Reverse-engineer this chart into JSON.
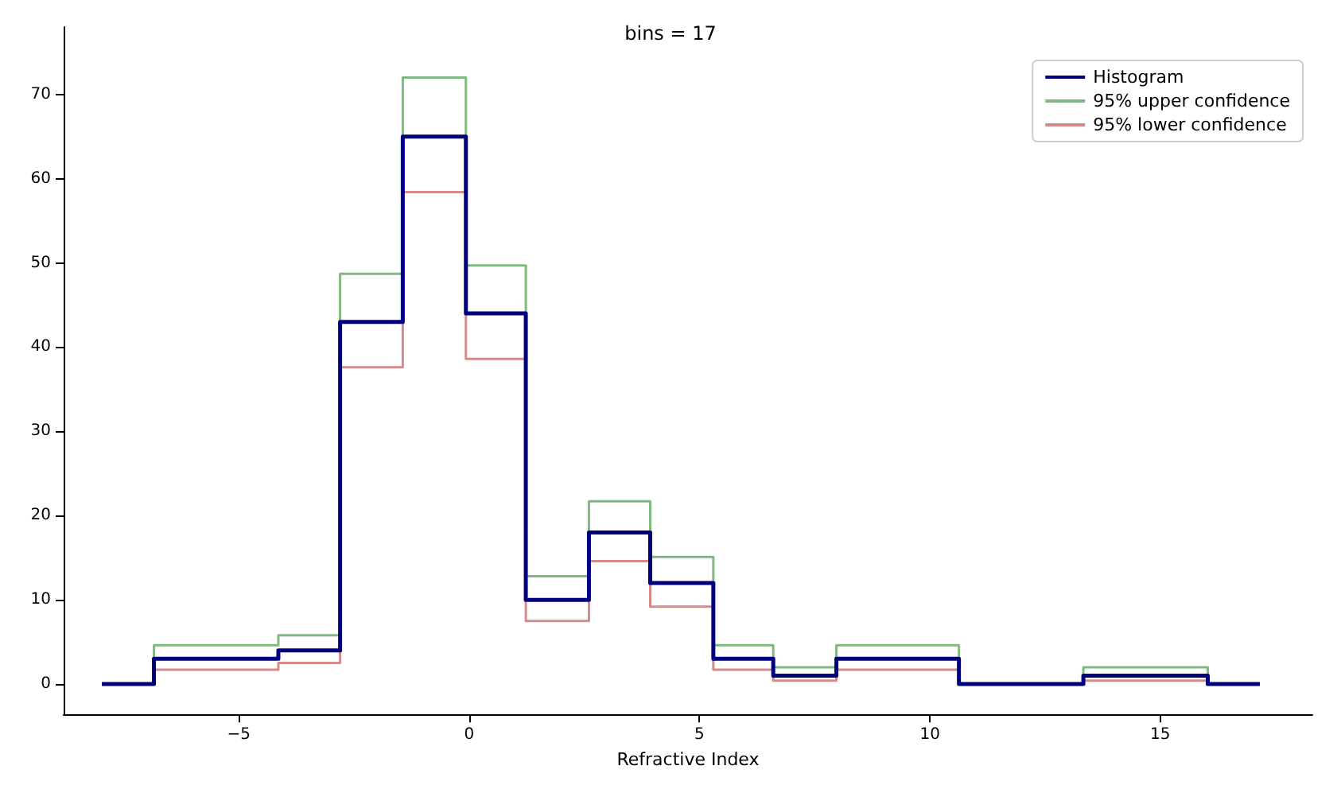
{
  "chart_data": {
    "type": "step",
    "title": "bins = 17",
    "xlabel": "Refractive Index",
    "xlim": [
      -8.8,
      18.3
    ],
    "ylim": [
      -3.6,
      78
    ],
    "xticks": [
      -5,
      0,
      5,
      10,
      15
    ],
    "yticks": [
      0,
      10,
      20,
      30,
      40,
      50,
      60,
      70
    ],
    "grid": false,
    "legend": "top right",
    "line_style": "solid",
    "marker": "none",
    "x": [
      -7.97,
      -6.84,
      -4.14,
      -2.8,
      -1.44,
      -0.07,
      1.23,
      2.6,
      3.93,
      5.3,
      6.6,
      7.97,
      10.63,
      13.33,
      16.03,
      17.16
    ],
    "series": [
      {
        "name": "Histogram",
        "color": "#00007f",
        "values": [
          0,
          3,
          4,
          43,
          65,
          44,
          10,
          18,
          12,
          3,
          1,
          3,
          0,
          1,
          0,
          0
        ]
      },
      {
        "name": "95% upper confidence",
        "color": "#7fb97f",
        "values": [
          0,
          4.6,
          5.8,
          48.7,
          72,
          49.7,
          12.8,
          21.7,
          15.1,
          4.6,
          2,
          4.6,
          0,
          2,
          0,
          0
        ]
      },
      {
        "name": "95% lower confidence",
        "color": "#d58a8a",
        "values": [
          0,
          1.7,
          2.5,
          37.6,
          58.4,
          38.6,
          7.5,
          14.6,
          9.2,
          1.7,
          0.4,
          1.7,
          0,
          0.4,
          0,
          0
        ]
      }
    ]
  }
}
